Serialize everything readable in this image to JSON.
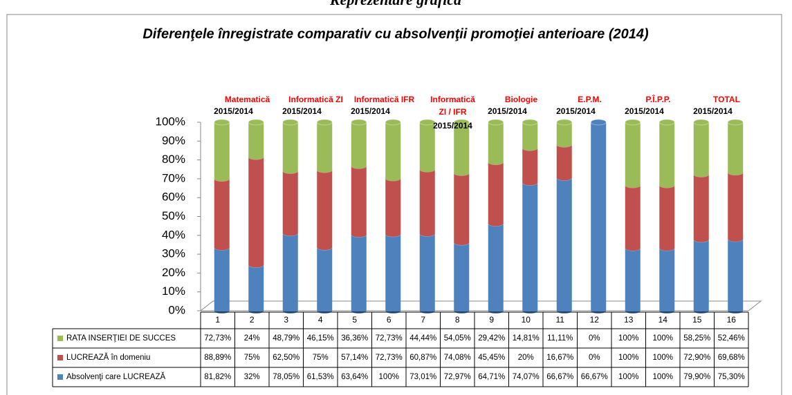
{
  "page_heading": "Reprezentare grafică",
  "chart_data": {
    "type": "bar",
    "stacking": "percent",
    "title": "Diferenţele înregistrate comparativ cu absolvenţii promoţiei anterioare (2014)",
    "categories": [
      "1",
      "2",
      "3",
      "4",
      "5",
      "6",
      "7",
      "8",
      "9",
      "10",
      "11",
      "12",
      "13",
      "14",
      "15",
      "16"
    ],
    "ylim": [
      0,
      100
    ],
    "yticks": [
      {
        "value": 0,
        "label": "0%"
      },
      {
        "value": 10,
        "label": "10%"
      },
      {
        "value": 20,
        "label": "20%"
      },
      {
        "value": 30,
        "label": "30%"
      },
      {
        "value": 40,
        "label": "40%"
      },
      {
        "value": 50,
        "label": "50%"
      },
      {
        "value": 60,
        "label": "60%"
      },
      {
        "value": 70,
        "label": "70%"
      },
      {
        "value": 80,
        "label": "80%"
      },
      {
        "value": 90,
        "label": "90%"
      },
      {
        "value": 100,
        "label": "100%"
      }
    ],
    "series": [
      {
        "name": "Absolvenţi care LUCREAZĂ",
        "color": "#4f81bd",
        "values": [
          81.82,
          32,
          78.05,
          61.53,
          63.64,
          100,
          73.01,
          72.97,
          64.71,
          74.07,
          66.67,
          66.67,
          100,
          100,
          79.9,
          75.3
        ],
        "value_labels": [
          "81,82%",
          "32%",
          "78,05%",
          "61,53%",
          "63,64%",
          "100%",
          "73,01%",
          "72,97%",
          "64,71%",
          "74,07%",
          "66,67%",
          "66,67%",
          "100%",
          "100%",
          "79,90%",
          "75,30%"
        ]
      },
      {
        "name": "LUCREAZĂ în domeniu",
        "color": "#c0504d",
        "values": [
          88.89,
          75,
          62.5,
          75,
          57.14,
          72.73,
          60.87,
          74.08,
          45.45,
          20,
          16.67,
          0,
          100,
          100,
          72.9,
          69.68
        ],
        "value_labels": [
          "88,89%",
          "75%",
          "62,50%",
          "75%",
          "57,14%",
          "72,73%",
          "60,87%",
          "74,08%",
          "45,45%",
          "20%",
          "16,67%",
          "0%",
          "100%",
          "100%",
          "72,90%",
          "69,68%"
        ]
      },
      {
        "name": "RATA INSERŢIEI  DE  SUCCES",
        "color": "#9bbb59",
        "values": [
          72.73,
          24,
          48.79,
          46.15,
          36.36,
          72.73,
          44.44,
          54.05,
          29.42,
          14.81,
          11.11,
          0,
          100,
          100,
          58.25,
          52.46
        ],
        "value_labels": [
          "72,73%",
          "24%",
          "48,79%",
          "46,15%",
          "36,36%",
          "72,73%",
          "44,44%",
          "54,05%",
          "29,42%",
          "14,81%",
          "11,11%",
          "0%",
          "100%",
          "100%",
          "58,25%",
          "52,46%"
        ]
      }
    ],
    "annotations": [
      {
        "lines": [
          "Matematică"
        ],
        "sub": "2015/2014"
      },
      {
        "lines": [
          "Informatică ZI"
        ],
        "sub": "2015/2014"
      },
      {
        "lines": [
          "Informatică IFR"
        ],
        "sub": "2015/2014"
      },
      {
        "lines": [
          "Informatică",
          "ZI / IFR"
        ],
        "sub": "2015/2014"
      },
      {
        "lines": [
          "Biologie"
        ],
        "sub": "2015/2014"
      },
      {
        "lines": [
          "E.P.M."
        ],
        "sub": "2015/2014"
      },
      {
        "lines": [
          "P.Î.P.P."
        ],
        "sub": "2015/2014"
      },
      {
        "lines": [
          "TOTAL"
        ],
        "sub": "2015/2014"
      }
    ]
  }
}
